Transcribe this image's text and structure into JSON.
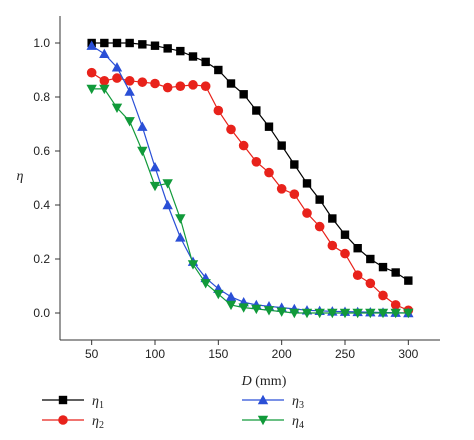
{
  "chart_data": {
    "type": "line",
    "title": "",
    "xlabel": {
      "var": "D",
      "unit": " (mm)"
    },
    "ylabel": "η",
    "xlim": [
      25,
      325
    ],
    "ylim": [
      -0.1,
      1.1
    ],
    "xticks": [
      50,
      100,
      150,
      200,
      250,
      300
    ],
    "yticks": [
      0.0,
      0.2,
      0.4,
      0.6,
      0.8,
      1.0
    ],
    "x": [
      50,
      60,
      70,
      80,
      90,
      100,
      110,
      120,
      130,
      140,
      150,
      160,
      170,
      180,
      190,
      200,
      210,
      220,
      230,
      240,
      250,
      260,
      270,
      280,
      290,
      300
    ],
    "series": [
      {
        "name": "η",
        "sub": "1",
        "marker": "square",
        "color": "#000000",
        "values": [
          1.0,
          1.0,
          1.0,
          1.0,
          0.995,
          0.99,
          0.98,
          0.97,
          0.95,
          0.93,
          0.9,
          0.85,
          0.81,
          0.75,
          0.69,
          0.62,
          0.55,
          0.48,
          0.42,
          0.35,
          0.29,
          0.24,
          0.2,
          0.17,
          0.15,
          0.12
        ]
      },
      {
        "name": "η",
        "sub": "2",
        "marker": "circle",
        "color": "#e8221b",
        "values": [
          0.89,
          0.86,
          0.87,
          0.86,
          0.855,
          0.85,
          0.835,
          0.84,
          0.845,
          0.84,
          0.75,
          0.68,
          0.62,
          0.56,
          0.52,
          0.46,
          0.44,
          0.37,
          0.32,
          0.25,
          0.22,
          0.14,
          0.11,
          0.065,
          0.03,
          0.01
        ]
      },
      {
        "name": "η",
        "sub": "3",
        "marker": "triangle-up",
        "color": "#2a4fd6",
        "values": [
          0.99,
          0.96,
          0.91,
          0.82,
          0.69,
          0.54,
          0.4,
          0.28,
          0.19,
          0.13,
          0.09,
          0.06,
          0.04,
          0.03,
          0.025,
          0.02,
          0.015,
          0.01,
          0.008,
          0.006,
          0.005,
          0.004,
          0.003,
          0.002,
          0.001,
          0.0
        ]
      },
      {
        "name": "η",
        "sub": "4",
        "marker": "triangle-down",
        "color": "#119a3a",
        "values": [
          0.83,
          0.83,
          0.76,
          0.71,
          0.6,
          0.47,
          0.48,
          0.35,
          0.18,
          0.11,
          0.07,
          0.03,
          0.02,
          0.015,
          0.01,
          0.005,
          0.0,
          0.0,
          0.0,
          0.0,
          0.0,
          0.0,
          0.0,
          0.0,
          0.0,
          0.0
        ]
      }
    ],
    "legend": "bottom",
    "grid": false
  }
}
